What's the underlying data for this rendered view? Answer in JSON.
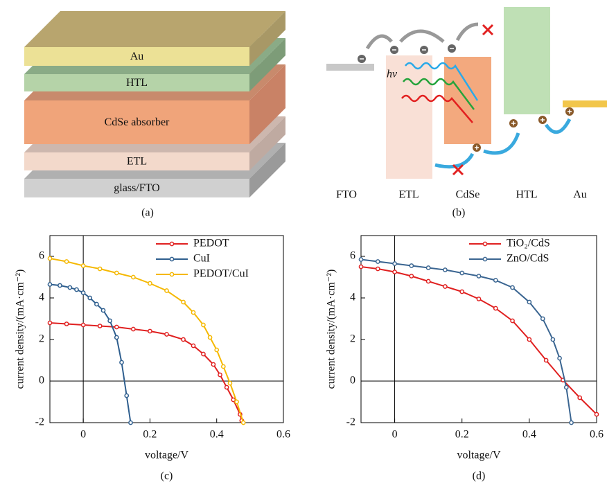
{
  "diagram_a": {
    "layers": [
      "Au",
      "HTL",
      "CdSe absorber",
      "ETL",
      "glass/FTO"
    ],
    "caption": "(a)"
  },
  "diagram_b": {
    "hv": "hv",
    "labels": [
      "FTO",
      "ETL",
      "CdSe",
      "HTL",
      "Au"
    ],
    "caption": "(b)"
  },
  "chart_data": [
    {
      "type": "line",
      "caption": "(c)",
      "xlabel": "voltage/V",
      "ylabel": "current density/(mA·cm⁻²)",
      "xlim": [
        -0.1,
        0.6
      ],
      "ylim": [
        -2,
        7
      ],
      "xticks": [
        0,
        0.2,
        0.4,
        0.6
      ],
      "yticks": [
        -2,
        0,
        2,
        4,
        6
      ],
      "legend": "upper right",
      "series": [
        {
          "name": "PEDOT",
          "color": "#e02020",
          "x": [
            -0.1,
            -0.05,
            0,
            0.05,
            0.1,
            0.15,
            0.2,
            0.25,
            0.3,
            0.33,
            0.36,
            0.39,
            0.41,
            0.43,
            0.45,
            0.47,
            0.475
          ],
          "values": [
            2.8,
            2.75,
            2.7,
            2.65,
            2.6,
            2.5,
            2.4,
            2.25,
            2.0,
            1.7,
            1.3,
            0.8,
            0.3,
            -0.3,
            -0.9,
            -1.6,
            -1.9
          ]
        },
        {
          "name": "CuI",
          "color": "#2e5e8e",
          "x": [
            -0.1,
            -0.07,
            -0.04,
            -0.02,
            0,
            0.02,
            0.04,
            0.06,
            0.08,
            0.1,
            0.115,
            0.13,
            0.142
          ],
          "values": [
            4.65,
            4.6,
            4.5,
            4.4,
            4.25,
            4.0,
            3.7,
            3.4,
            2.9,
            2.1,
            0.9,
            -0.7,
            -2.0
          ]
        },
        {
          "name": "PEDOT/CuI",
          "color": "#f5b800",
          "x": [
            -0.1,
            -0.05,
            0,
            0.05,
            0.1,
            0.15,
            0.2,
            0.25,
            0.3,
            0.33,
            0.36,
            0.38,
            0.4,
            0.42,
            0.44,
            0.46,
            0.48
          ],
          "values": [
            5.9,
            5.75,
            5.55,
            5.4,
            5.2,
            5.0,
            4.7,
            4.35,
            3.8,
            3.3,
            2.7,
            2.1,
            1.5,
            0.7,
            -0.1,
            -1.0,
            -2.0
          ]
        }
      ]
    },
    {
      "type": "line",
      "caption": "(d)",
      "xlabel": "voltage/V",
      "ylabel": "current density/(mA·cm⁻²)",
      "xlim": [
        -0.1,
        0.6
      ],
      "ylim": [
        -2,
        7
      ],
      "xticks": [
        0,
        0.2,
        0.4,
        0.6
      ],
      "yticks": [
        -2,
        0,
        2,
        4,
        6
      ],
      "legend": "upper right",
      "series": [
        {
          "name": "TiO₂/CdS",
          "color": "#e02020",
          "x": [
            -0.1,
            -0.05,
            0,
            0.05,
            0.1,
            0.15,
            0.2,
            0.25,
            0.3,
            0.35,
            0.4,
            0.45,
            0.5,
            0.55,
            0.6
          ],
          "values": [
            5.5,
            5.4,
            5.25,
            5.05,
            4.8,
            4.55,
            4.3,
            3.95,
            3.5,
            2.9,
            2.0,
            1.0,
            0.05,
            -0.8,
            -1.6
          ]
        },
        {
          "name": "ZnO/CdS",
          "color": "#3a6591",
          "x": [
            -0.1,
            -0.05,
            0,
            0.05,
            0.1,
            0.15,
            0.2,
            0.25,
            0.3,
            0.35,
            0.4,
            0.44,
            0.47,
            0.49,
            0.51,
            0.525
          ],
          "values": [
            5.85,
            5.75,
            5.65,
            5.55,
            5.45,
            5.35,
            5.2,
            5.05,
            4.85,
            4.5,
            3.8,
            3.0,
            2.0,
            1.1,
            -0.3,
            -2.0
          ]
        }
      ]
    }
  ]
}
